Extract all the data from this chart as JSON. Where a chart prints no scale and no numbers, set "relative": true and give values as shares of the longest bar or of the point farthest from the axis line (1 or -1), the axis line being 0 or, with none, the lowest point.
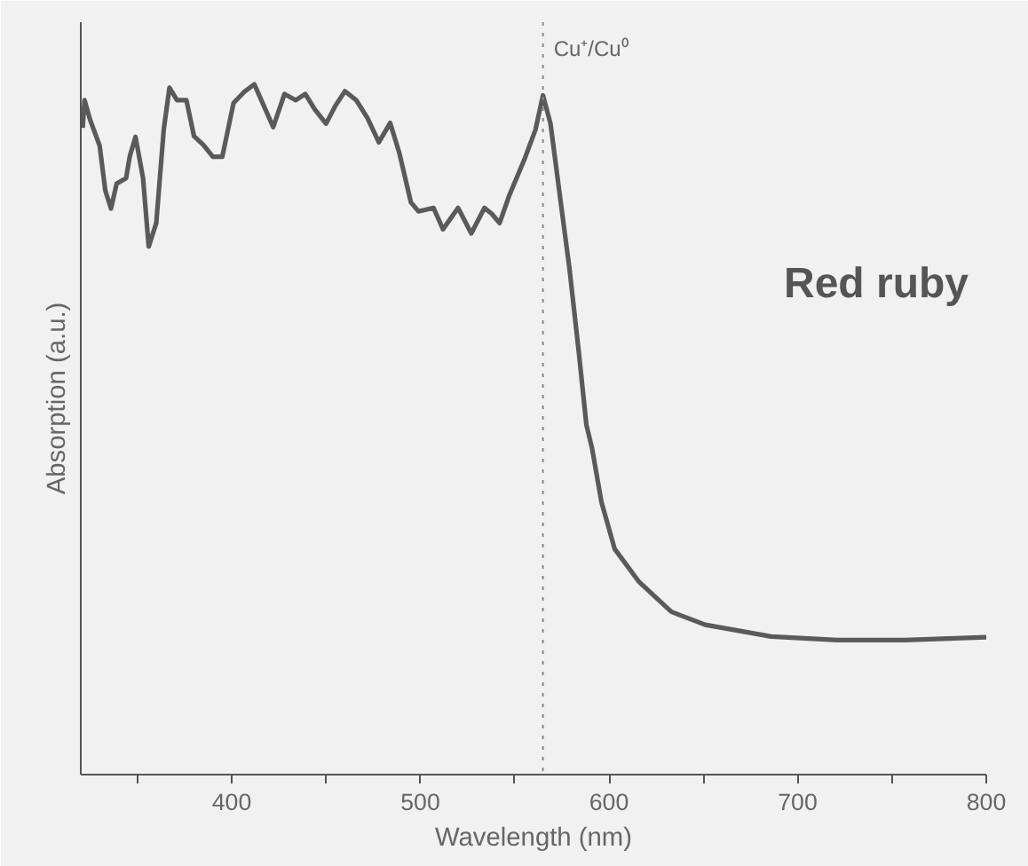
{
  "chart_data": {
    "type": "line",
    "relative": true,
    "xlabel": "Wavelength (nm)",
    "ylabel": "Absorption (a.u.)",
    "xlim": [
      320,
      800
    ],
    "xticks": [
      {
        "value": 350,
        "label": null
      },
      400,
      {
        "value": 450,
        "label": null
      },
      500,
      {
        "value": 550,
        "label": null
      },
      600,
      {
        "value": 650,
        "label": null
      },
      700,
      {
        "value": 750,
        "label": null
      },
      800
    ],
    "tick_labels": "x",
    "grid": false,
    "marker": "none",
    "line_style": "solid",
    "ref_lines": [
      {
        "axis": "x",
        "value": 565,
        "label": "Cu⁺/Cu⁰",
        "color": "#888888",
        "line_style": "dotted"
      }
    ],
    "annotations": [
      "Red ruby"
    ],
    "series": [
      {
        "color": "#5a5a5a",
        "x": [
          321,
          322,
          325,
          330,
          333,
          336,
          339,
          344,
          346,
          349,
          353,
          356,
          360,
          364,
          367,
          371,
          376,
          380,
          385,
          390,
          395,
          401,
          407,
          412,
          417,
          422,
          428,
          434,
          439,
          444,
          450,
          455,
          460,
          466,
          472,
          478,
          484,
          489,
          495,
          499,
          507,
          512,
          520,
          527,
          534,
          538,
          542,
          547,
          555,
          561,
          565,
          569,
          574,
          579,
          584,
          588,
          591,
          596,
          603,
          616,
          633,
          651,
          686,
          721,
          757,
          800
        ],
        "values": [
          0.937,
          0.977,
          0.948,
          0.911,
          0.846,
          0.82,
          0.856,
          0.864,
          0.896,
          0.924,
          0.864,
          0.765,
          0.799,
          0.935,
          0.995,
          0.977,
          0.977,
          0.925,
          0.912,
          0.895,
          0.895,
          0.973,
          0.99,
          1,
          0.969,
          0.938,
          0.986,
          0.977,
          0.986,
          0.964,
          0.943,
          0.969,
          0.99,
          0.977,
          0.951,
          0.916,
          0.944,
          0.899,
          0.829,
          0.816,
          0.821,
          0.79,
          0.821,
          0.784,
          0.821,
          0.812,
          0.799,
          0.838,
          0.89,
          0.934,
          0.984,
          0.943,
          0.838,
          0.734,
          0.612,
          0.507,
          0.473,
          0.395,
          0.327,
          0.279,
          0.236,
          0.217,
          0.2,
          0.195,
          0.195,
          0.199
        ]
      }
    ]
  }
}
